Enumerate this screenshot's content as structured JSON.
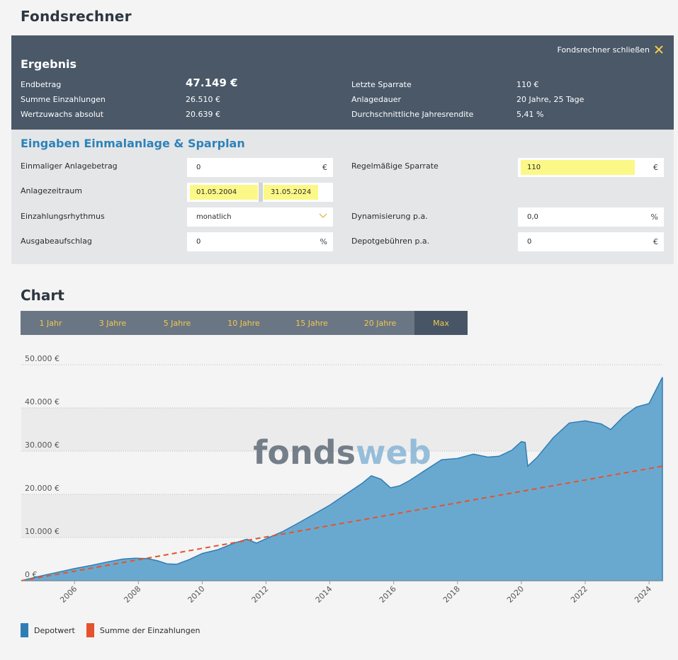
{
  "page": {
    "title": "Fondsrechner"
  },
  "result": {
    "heading": "Ergebnis",
    "close_label": "Fondsrechner schließen",
    "rows_left": [
      {
        "label": "Endbetrag",
        "value": "47.149 €"
      },
      {
        "label": "Summe Einzahlungen",
        "value": "26.510 €"
      },
      {
        "label": "Wertzuwachs absolut",
        "value": "20.639 €"
      }
    ],
    "rows_right": [
      {
        "label": "Letzte Sparrate",
        "value": "110 €"
      },
      {
        "label": "Anlagedauer",
        "value": "20 Jahre, 25 Tage"
      },
      {
        "label": "Durchschnittliche Jahresrendite",
        "value": "5,41 %"
      }
    ]
  },
  "inputs": {
    "heading": "Eingaben Einmalanlage & Sparplan",
    "one_time": {
      "label": "Einmaliger Anlagebetrag",
      "value": "0",
      "unit": "€"
    },
    "period": {
      "label": "Anlagezeitraum",
      "start": "01.05.2004",
      "end": "31.05.2024"
    },
    "rhythm": {
      "label": "Einzahlungsrhythmus",
      "value": "monatlich"
    },
    "fee": {
      "label": "Ausgabeaufschlag",
      "value": "0",
      "unit": "%"
    },
    "rate": {
      "label": "Regelmäßige Sparrate",
      "value": "110",
      "unit": "€"
    },
    "dynamic": {
      "label": "Dynamisierung p.a.",
      "value": "0,0",
      "unit": "%"
    },
    "depot_fee": {
      "label": "Depotgebühren p.a.",
      "value": "0",
      "unit": "€"
    }
  },
  "chart_section": {
    "title": "Chart",
    "tabs": [
      "1 Jahr",
      "3 Jahre",
      "5 Jahre",
      "10 Jahre",
      "15 Jahre",
      "20 Jahre",
      "Max"
    ],
    "active_tab": "Max",
    "watermark_a": "fonds",
    "watermark_b": "web"
  },
  "chart_data": {
    "type": "area",
    "y_ticks": [
      "0 €",
      "10.000 €",
      "20.000 €",
      "30.000 €",
      "40.000 €",
      "50.000 €"
    ],
    "x_ticks": [
      "2006",
      "2008",
      "2010",
      "2012",
      "2014",
      "2016",
      "2018",
      "2020",
      "2022",
      "2024"
    ],
    "ylim": [
      0,
      50000
    ],
    "xlim": [
      2004.33,
      2024.42
    ],
    "grid": true,
    "legend_position": "bottom-left",
    "series": [
      {
        "name": "Depotwert",
        "type": "area",
        "color": "#2f7db5",
        "x": [
          2004.33,
          2005.0,
          2005.5,
          2006.0,
          2006.5,
          2007.0,
          2007.5,
          2007.9,
          2008.3,
          2008.6,
          2008.9,
          2009.2,
          2009.6,
          2010.0,
          2010.5,
          2011.0,
          2011.4,
          2011.7,
          2012.0,
          2012.5,
          2013.0,
          2013.5,
          2014.0,
          2014.5,
          2015.0,
          2015.3,
          2015.6,
          2015.9,
          2016.2,
          2016.5,
          2017.0,
          2017.5,
          2018.0,
          2018.5,
          2018.95,
          2019.3,
          2019.7,
          2020.0,
          2020.12,
          2020.2,
          2020.5,
          2021.0,
          2021.5,
          2022.0,
          2022.5,
          2022.8,
          2023.2,
          2023.6,
          2024.0,
          2024.42
        ],
        "y": [
          0,
          1200,
          2000,
          2800,
          3500,
          4300,
          5000,
          5200,
          5100,
          4600,
          3900,
          3800,
          4900,
          6300,
          7200,
          8700,
          9600,
          8700,
          9700,
          11300,
          13300,
          15400,
          17500,
          20000,
          22500,
          24300,
          23500,
          21500,
          22000,
          23200,
          25600,
          28000,
          28300,
          29300,
          28600,
          28800,
          30200,
          32200,
          32000,
          26500,
          28600,
          33100,
          36500,
          37000,
          36300,
          35000,
          38000,
          40200,
          41000,
          47100
        ]
      },
      {
        "name": "Summe der Einzahlungen",
        "type": "line",
        "dashed": true,
        "color": "#e6522c",
        "x": [
          2004.33,
          2024.42
        ],
        "y": [
          0,
          26510
        ]
      }
    ]
  },
  "colors": {
    "accent": "#2d82b9",
    "highlight": "#fbf888",
    "panel": "#4a5868",
    "tab_text": "#f2c94c"
  }
}
